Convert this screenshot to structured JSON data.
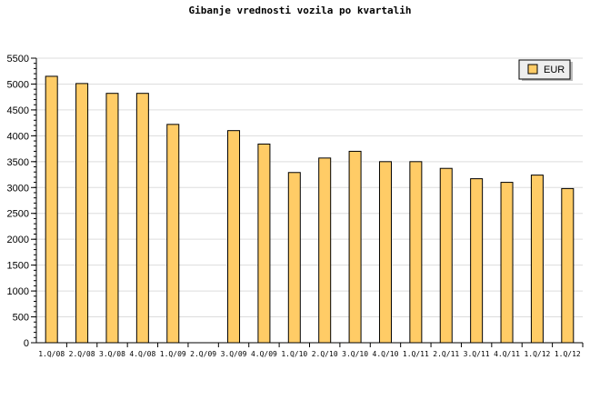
{
  "chart_data": {
    "type": "bar",
    "title": "Gibanje vrednosti vozila po kvartalih",
    "categories": [
      "1.Q/08",
      "2.Q/08",
      "3.Q/08",
      "4.Q/08",
      "1.Q/09",
      "2.Q/09",
      "3.Q/09",
      "4.Q/09",
      "1.Q/10",
      "2.Q/10",
      "3.Q/10",
      "4.Q/10",
      "1.Q/11",
      "2.Q/11",
      "3.Q/11",
      "4.Q/11",
      "1.Q/12",
      "1.Q/12"
    ],
    "series": [
      {
        "name": "EUR",
        "values": [
          5150,
          5010,
          4820,
          4820,
          4220,
          0,
          4100,
          3840,
          3290,
          3570,
          3700,
          3500,
          3500,
          3370,
          3170,
          3100,
          3240,
          2980
        ],
        "color": "#ffcc66"
      }
    ],
    "ylim": [
      0,
      5500
    ],
    "yticks": [
      0,
      500,
      1000,
      1500,
      2000,
      2500,
      3000,
      3500,
      4000,
      4500,
      5000,
      5500
    ],
    "grid": true,
    "legend_position": "top-right"
  }
}
